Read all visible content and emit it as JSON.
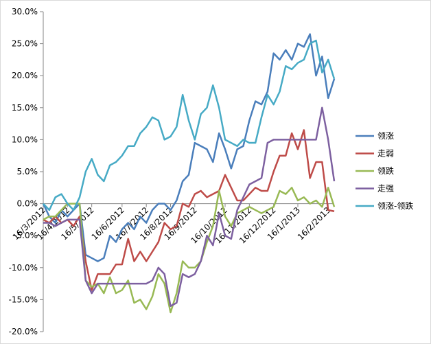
{
  "chart_data": {
    "type": "line",
    "categories": [
      "16/3/2012",
      null,
      null,
      null,
      "16/4/2012",
      null,
      null,
      null,
      "16/5/2012",
      null,
      null,
      null,
      null,
      "16/6/2012",
      null,
      null,
      null,
      "16/7/2012",
      null,
      null,
      null,
      "16/8/2012",
      null,
      null,
      null,
      "16/9/2012",
      null,
      null,
      null,
      null,
      "16/10/2012",
      null,
      null,
      null,
      "16/11/2012",
      null,
      null,
      null,
      "16/12/2012",
      null,
      null,
      null,
      "16/1/2013",
      null,
      null,
      null,
      null,
      "16/2/2013",
      null
    ],
    "series": [
      {
        "name": "领涨",
        "color": "#4a7ebb",
        "values": [
          0,
          -2,
          -3,
          -1,
          -2,
          -1,
          0,
          -8,
          -8.5,
          -9,
          -8.5,
          -5,
          -6,
          -4,
          -3,
          -4,
          -2,
          -3,
          -1,
          0,
          0,
          -1,
          0.5,
          3.5,
          4.5,
          9.5,
          9,
          8.5,
          6.5,
          11,
          8.5,
          5.5,
          8.5,
          9,
          13,
          16,
          15.5,
          17.5,
          23.5,
          22.5,
          24,
          22.5,
          25,
          24.5,
          26.5,
          20,
          23,
          16.5,
          19.5
        ]
      },
      {
        "name": "走弱",
        "color": "#be4b48",
        "values": [
          -2.5,
          -3,
          -2,
          -3,
          -2.5,
          -3.5,
          -2,
          -9,
          -13.5,
          -11,
          -11,
          -11,
          -9.5,
          -9.5,
          -5.5,
          -9,
          -7.5,
          -9,
          -7.5,
          -6,
          -3,
          -4,
          -3.5,
          0,
          -0.5,
          1.5,
          2,
          1,
          1.5,
          2,
          4.5,
          2.5,
          0.5,
          0.5,
          1.5,
          2.5,
          2,
          2,
          5,
          7.5,
          7.5,
          11,
          8.5,
          11.5,
          4,
          6.5,
          6.5,
          -1,
          -1.2
        ]
      },
      {
        "name": "领跌",
        "color": "#98b954",
        "values": [
          -2.5,
          -2,
          -2,
          -1,
          0,
          0,
          0,
          -12,
          -13,
          -12.5,
          -14,
          -11.5,
          -14,
          -13.5,
          -12,
          -15.5,
          -15,
          -16.5,
          -14.5,
          -11,
          -12.5,
          -17,
          -14,
          -9,
          -10,
          -10,
          -9,
          -6,
          -3.5,
          2,
          -2,
          -3.5,
          -1.5,
          -1,
          -0.5,
          -1,
          -1.5,
          -1,
          -0.5,
          2,
          1.5,
          2.5,
          0.5,
          1,
          0,
          0.5,
          -0.5,
          2.5,
          -0.5
        ]
      },
      {
        "name": "走强",
        "color": "#7d60a0",
        "values": [
          -3,
          -3,
          -3.5,
          -3,
          -2.5,
          -2.5,
          -2.5,
          -12,
          -14,
          -12.5,
          -12.5,
          -12.5,
          -12.5,
          -12.5,
          -12.5,
          -12.5,
          -12.5,
          -12.5,
          -12,
          -10,
          -11,
          -16,
          -15.5,
          -11,
          -11.5,
          -11,
          -9,
          -5,
          -6.5,
          -1.5,
          -5,
          -5.5,
          -1,
          1,
          3,
          3.5,
          4,
          9.5,
          10,
          10,
          10,
          10,
          10,
          10,
          10,
          10,
          15,
          10,
          3.5
        ]
      },
      {
        "name": "领涨-领跌",
        "color": "#46aac5",
        "values": [
          0,
          -1,
          1,
          1.5,
          0,
          -1,
          1,
          5,
          7,
          4.5,
          3.5,
          6,
          6.5,
          7.5,
          9,
          9,
          11,
          12,
          13.5,
          13,
          10,
          10.5,
          12,
          17,
          13,
          10,
          14,
          15,
          18.5,
          15,
          10,
          9.5,
          9,
          10,
          9.5,
          9.5,
          13.5,
          17,
          15.5,
          17.5,
          21.5,
          21,
          22,
          22.5,
          25,
          25.5,
          20.5,
          22.5,
          19.5
        ]
      }
    ],
    "ylim": [
      -20,
      30
    ],
    "yticks": [
      {
        "value": -20,
        "label": "-20.0%"
      },
      {
        "value": -15,
        "label": "-15.0%"
      },
      {
        "value": -10,
        "label": "-10.0%"
      },
      {
        "value": -5,
        "label": "-5.0%"
      },
      {
        "value": 0,
        "label": "0.0%"
      },
      {
        "value": 5,
        "label": "5.0%"
      },
      {
        "value": 10,
        "label": "10.0%"
      },
      {
        "value": 15,
        "label": "15.0%"
      },
      {
        "value": 20,
        "label": "20.0%"
      },
      {
        "value": 25,
        "label": "25.0%"
      },
      {
        "value": 30,
        "label": "30.0%"
      }
    ],
    "grid": false,
    "legend": "right"
  }
}
